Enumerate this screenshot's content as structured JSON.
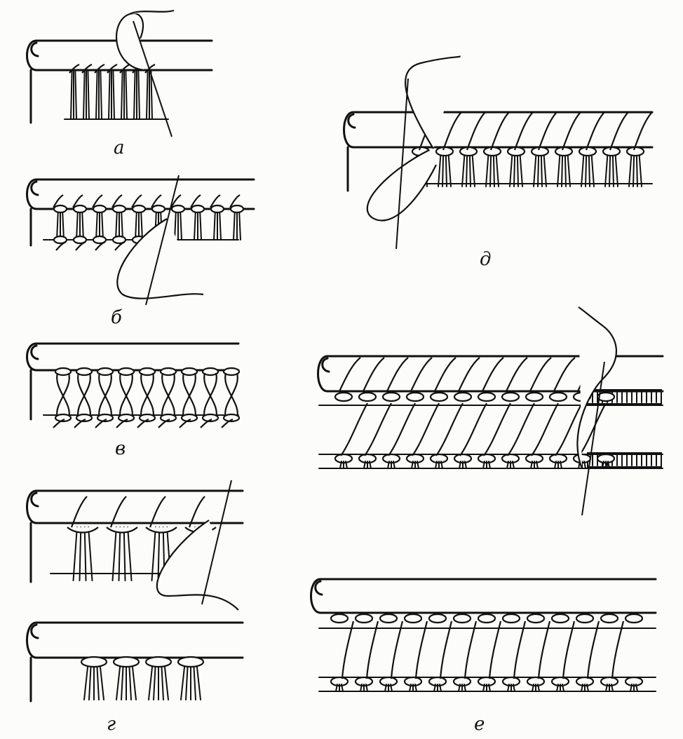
{
  "figure": {
    "panels": [
      {
        "id": "a",
        "label": "а"
      },
      {
        "id": "b",
        "label": "б"
      },
      {
        "id": "v",
        "label": "в"
      },
      {
        "id": "g",
        "label": "г"
      },
      {
        "id": "d",
        "label": "д"
      },
      {
        "id": "e",
        "label": "е"
      }
    ]
  }
}
